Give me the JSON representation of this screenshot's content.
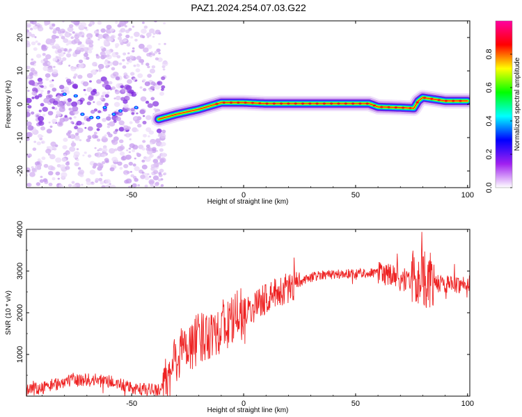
{
  "figure": {
    "title": "PAZ1.2024.254.07.03.G22"
  },
  "chart_data": [
    {
      "type": "heatmap",
      "xlabel": "Height of straight line (km)",
      "ylabel": "Frequency (Hz)",
      "xlim": [
        -97,
        101
      ],
      "ylim": [
        -25,
        25
      ],
      "xticks": [
        -50,
        0,
        50,
        100
      ],
      "yticks": [
        -20,
        -10,
        0,
        10,
        20
      ],
      "colorbar": {
        "label": "Normalized spectral amplitude",
        "range": [
          0,
          1
        ],
        "ticks": [
          0.0,
          0.2,
          0.4,
          0.6,
          0.8
        ],
        "tick_labels": [
          "0.0",
          "0.2",
          "0.4",
          "0.6",
          "0.8"
        ],
        "colors": [
          "#ffffff",
          "#a020f0",
          "#0000ff",
          "#00ffff",
          "#00ff00",
          "#ffff00",
          "#ff0000",
          "#ff00a0"
        ]
      },
      "ridge": {
        "x": [
          -38,
          -30,
          -20,
          -10,
          0,
          10,
          20,
          30,
          40,
          50,
          56,
          60,
          70,
          76,
          78,
          80,
          90,
          100
        ],
        "y": [
          -4.5,
          -3,
          -1.5,
          0.5,
          0.5,
          0.2,
          0.2,
          0.2,
          0.2,
          0.2,
          0.2,
          -0.8,
          -1.0,
          -1.2,
          1.0,
          2.0,
          1.0,
          1.0
        ]
      },
      "noise_region_x": [
        -97,
        -35
      ]
    },
    {
      "type": "line",
      "xlabel": "Height of straight line (km)",
      "ylabel": "SNR (10 * v/v)",
      "xlim": [
        -97,
        101
      ],
      "ylim": [
        0,
        4000
      ],
      "xticks": [
        -50,
        0,
        50,
        100
      ],
      "yticks": [
        1000,
        2000,
        3000,
        4000
      ],
      "color": "#ee2222",
      "series": [
        {
          "x": [
            -97,
            -90,
            -80,
            -70,
            -60,
            -55,
            -50,
            -45,
            -40,
            -36,
            -33,
            -30,
            -25,
            -20,
            -15,
            -10,
            -5,
            0,
            5,
            10,
            15,
            20,
            25,
            30,
            35,
            40,
            45,
            50,
            55,
            60,
            65,
            70,
            75,
            80,
            85,
            90,
            95,
            101
          ],
          "values": [
            150,
            200,
            350,
            400,
            350,
            280,
            180,
            150,
            150,
            180,
            450,
            950,
            1200,
            1350,
            1550,
            1650,
            1800,
            2000,
            2150,
            2350,
            2480,
            2600,
            2700,
            2850,
            2920,
            2920,
            2930,
            2950,
            2960,
            2950,
            2900,
            2800,
            2800,
            2850,
            2700,
            2700,
            2680,
            2700
          ]
        }
      ]
    }
  ]
}
